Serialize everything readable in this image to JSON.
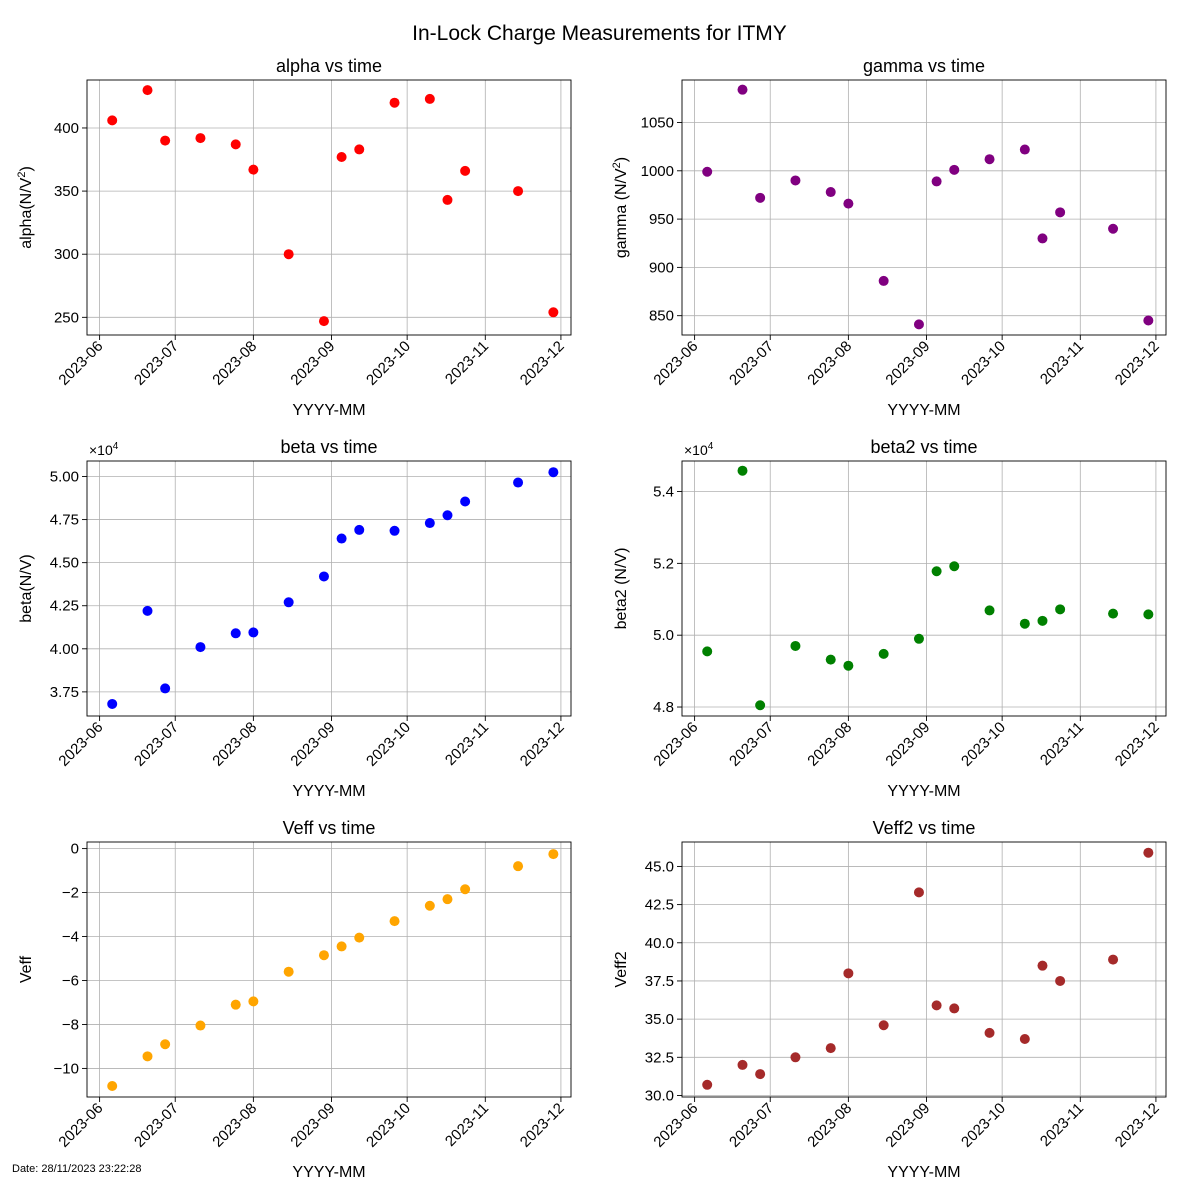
{
  "suptitle": "In-Lock Charge Measurements for ITMY",
  "date_stamp": "Date: 28/11/2023 23:22:28",
  "x_tick_labels": [
    "2023-06",
    "2023-07",
    "2023-08",
    "2023-09",
    "2023-10",
    "2023-11",
    "2023-12"
  ],
  "x_tick_dates": [
    "2023-06-01",
    "2023-07-01",
    "2023-08-01",
    "2023-09-01",
    "2023-10-01",
    "2023-11-01",
    "2023-12-01"
  ],
  "x_range": [
    "2023-05-27",
    "2023-12-05"
  ],
  "measurement_dates": [
    "2023-06-06",
    "2023-06-20",
    "2023-06-27",
    "2023-07-11",
    "2023-07-25",
    "2023-08-01",
    "2023-08-15",
    "2023-08-29",
    "2023-09-05",
    "2023-09-12",
    "2023-09-26",
    "2023-10-10",
    "2023-10-17",
    "2023-10-24",
    "2023-11-14",
    "2023-11-28"
  ],
  "chart_data": [
    {
      "id": "alpha",
      "type": "scatter",
      "title": "alpha vs time",
      "xlabel": "YYYY-MM",
      "ylabel_main": "alpha(N/V",
      "ylabel_sup": "2",
      "ylabel_tail": ")",
      "color": "#ff0000",
      "grid": true,
      "ylim": [
        236,
        438
      ],
      "yticks": [
        250,
        300,
        350,
        400
      ],
      "ytick_labels": [
        "250",
        "300",
        "350",
        "400"
      ],
      "y": [
        406,
        430,
        390,
        392,
        387,
        367,
        300,
        247,
        377,
        383,
        420,
        423,
        343,
        366,
        350,
        254
      ]
    },
    {
      "id": "gamma",
      "type": "scatter",
      "title": "gamma vs time",
      "xlabel": "YYYY-MM",
      "ylabel_main": "gamma (N/V",
      "ylabel_sup": "2",
      "ylabel_tail": ")",
      "color": "#800080",
      "grid": true,
      "ylim": [
        830,
        1094
      ],
      "yticks": [
        850,
        900,
        950,
        1000,
        1050
      ],
      "ytick_labels": [
        "850",
        "900",
        "950",
        "1000",
        "1050"
      ],
      "y": [
        999,
        1084,
        972,
        990,
        978,
        966,
        886,
        841,
        989,
        1001,
        1012,
        1022,
        930,
        957,
        940,
        845
      ]
    },
    {
      "id": "beta",
      "type": "scatter",
      "title": "beta vs time",
      "xlabel": "YYYY-MM",
      "ylabel_main": "beta(N/V)",
      "ylabel_sup": "",
      "ylabel_tail": "",
      "offset_label": "×10",
      "offset_exp": "4",
      "color": "#0000ff",
      "grid": true,
      "ylim": [
        3.61,
        5.09
      ],
      "yticks": [
        3.75,
        4.0,
        4.25,
        4.5,
        4.75,
        5.0
      ],
      "ytick_labels": [
        "3.75",
        "4.00",
        "4.25",
        "4.50",
        "4.75",
        "5.00"
      ],
      "y": [
        3.68,
        4.22,
        3.77,
        4.01,
        4.09,
        4.095,
        4.27,
        4.42,
        4.64,
        4.69,
        4.685,
        4.73,
        4.775,
        4.855,
        4.965,
        5.025
      ]
    },
    {
      "id": "beta2",
      "type": "scatter",
      "title": "beta2 vs time",
      "xlabel": "YYYY-MM",
      "ylabel_main": "beta2 (N/V)",
      "ylabel_sup": "",
      "ylabel_tail": "",
      "offset_label": "×10",
      "offset_exp": "4",
      "color": "#008000",
      "grid": true,
      "ylim": [
        4.775,
        5.485
      ],
      "yticks": [
        4.8,
        5.0,
        5.2,
        5.4
      ],
      "ytick_labels": [
        "4.8",
        "5.0",
        "5.2",
        "5.4"
      ],
      "y": [
        4.955,
        5.458,
        4.805,
        4.97,
        4.932,
        4.915,
        4.948,
        4.99,
        5.178,
        5.192,
        5.069,
        5.032,
        5.04,
        5.072,
        5.06,
        5.058
      ]
    },
    {
      "id": "veff",
      "type": "scatter",
      "title": "Veff vs time",
      "xlabel": "YYYY-MM",
      "ylabel_main": "Veff",
      "ylabel_sup": "",
      "ylabel_tail": "",
      "color": "#ffa500",
      "grid": true,
      "ylim": [
        -11.3,
        0.3
      ],
      "yticks": [
        -10,
        -8,
        -6,
        -4,
        -2,
        0
      ],
      "ytick_labels": [
        "−10",
        "−8",
        "−6",
        "−4",
        "−2",
        "0"
      ],
      "y": [
        -10.8,
        -9.45,
        -8.9,
        -8.05,
        -7.1,
        -6.95,
        -5.6,
        -4.85,
        -4.45,
        -4.05,
        -3.3,
        -2.6,
        -2.3,
        -1.85,
        -0.8,
        -0.25
      ]
    },
    {
      "id": "veff2",
      "type": "scatter",
      "title": "Veff2 vs time",
      "xlabel": "YYYY-MM",
      "ylabel_main": "Veff2",
      "ylabel_sup": "",
      "ylabel_tail": "",
      "color": "#a52a2a",
      "grid": true,
      "ylim": [
        29.9,
        46.6
      ],
      "yticks": [
        30.0,
        32.5,
        35.0,
        37.5,
        40.0,
        42.5,
        45.0
      ],
      "ytick_labels": [
        "30.0",
        "32.5",
        "35.0",
        "37.5",
        "40.0",
        "42.5",
        "45.0"
      ],
      "y": [
        30.7,
        32.0,
        31.4,
        32.5,
        33.1,
        38.0,
        34.6,
        43.3,
        35.9,
        35.7,
        34.1,
        33.7,
        38.5,
        37.5,
        38.9,
        45.9
      ]
    }
  ]
}
